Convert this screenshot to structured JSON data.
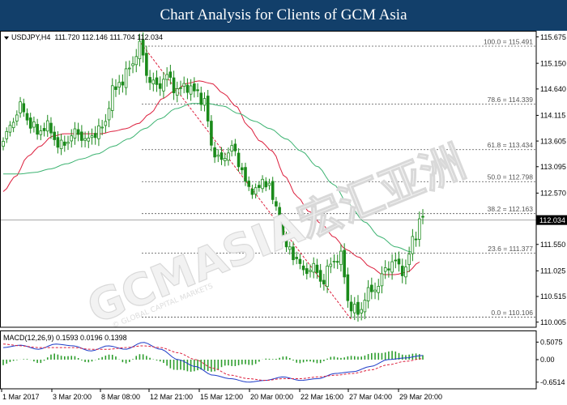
{
  "banner": {
    "title": "Chart Analysis for Clients of GCM Asia"
  },
  "watermark": {
    "main": "GCMASIA宏汇亚洲",
    "sub": "© GLOBAL CAPITAL MARKETS"
  },
  "colors": {
    "banner_bg": "#123f6a",
    "candle": "#1a8a1a",
    "ma_fast": "#dc1e3c",
    "ma_slow": "#3cb371",
    "fib_line": "#555555",
    "trend": "#dc1e3c",
    "macd_hist": "#2e9e2e",
    "macd_line": "#1e3cc8",
    "signal": "#dc1e3c"
  },
  "chart_data": [
    {
      "type": "candlestick",
      "header": {
        "symbol": "USDJPY,H4",
        "ohlc": "111.720 112.146 111.704 112.034"
      },
      "ylim": [
        110.0,
        115.7
      ],
      "y_ticks": [
        "115.675",
        "115.150",
        "114.640",
        "114.115",
        "113.605",
        "113.095",
        "112.570",
        "112.034",
        "111.550",
        "111.025",
        "110.515",
        "110.005"
      ],
      "last_price": "112.034",
      "x_ticks": [
        "1 Mar 2017",
        "3 Mar 20:00",
        "8 Mar 08:00",
        "12 Mar 21:00",
        "15 Mar 12:00",
        "20 Mar 00:00",
        "22 Mar 16:00",
        "27 Mar 04:00",
        "29 Mar 20:00"
      ],
      "fib_levels": [
        {
          "label": "100.0 = 115.491",
          "value": 115.491
        },
        {
          "label": "78.6 = 114.339",
          "value": 114.339
        },
        {
          "label": "61.8 = 113.434",
          "value": 113.434
        },
        {
          "label": "50.0 = 112.798",
          "value": 112.798
        },
        {
          "label": "38.2 = 112.163",
          "value": 112.163
        },
        {
          "label": "23.6 = 111.377",
          "value": 111.377
        },
        {
          "label": "0.0 = 110.106",
          "value": 110.106
        }
      ],
      "trend_line": {
        "from": 115.55,
        "to": 110.05
      },
      "close_path": [
        113.6,
        114.0,
        114.3,
        113.9,
        113.8,
        113.9,
        113.5,
        113.6,
        113.8,
        113.6,
        113.75,
        113.9,
        114.6,
        114.8,
        115.1,
        115.5,
        114.8,
        114.7,
        114.9,
        114.6,
        114.7,
        114.6,
        114.4,
        113.4,
        113.2,
        113.5,
        113.1,
        112.6,
        112.7,
        112.8,
        112.2,
        111.5,
        111.3,
        111.0,
        111.1,
        110.8,
        111.2,
        111.3,
        110.3,
        110.2,
        110.6,
        110.7,
        111.1,
        111.2,
        111.0,
        111.7,
        112.1
      ],
      "ma_fast_path": [
        112.6,
        112.9,
        113.3,
        113.5,
        113.7,
        113.75,
        113.75,
        113.75,
        113.75,
        113.8,
        113.85,
        113.95,
        114.15,
        114.45,
        114.6,
        114.75,
        114.8,
        114.75,
        114.55,
        114.3,
        113.9,
        113.6,
        113.4,
        112.9,
        112.5,
        112.2,
        111.95,
        111.7,
        111.45,
        111.3,
        111.1,
        110.95,
        110.95,
        111.0,
        111.2
      ],
      "ma_slow_path": [
        112.95,
        112.95,
        112.98,
        113.05,
        113.15,
        113.25,
        113.35,
        113.5,
        113.65,
        113.85,
        114.05,
        114.25,
        114.35,
        114.35,
        114.3,
        114.15,
        114.0,
        113.85,
        113.65,
        113.4,
        113.1,
        112.75,
        112.35,
        112.0,
        111.7,
        111.5,
        111.4
      ]
    },
    {
      "type": "macd",
      "label": "MACD(12,26,9) 0.1593 0.0196 0.1398",
      "ylim": [
        -0.75,
        0.75
      ],
      "y_ticks": [
        "0.5075",
        "0.00",
        "-0.6514"
      ],
      "macd_path": [
        0.35,
        0.42,
        0.3,
        0.45,
        0.4,
        0.25,
        0.4,
        0.3,
        0.5,
        0.3,
        0.0,
        -0.2,
        -0.45,
        -0.55,
        -0.65,
        -0.6,
        -0.5,
        -0.6,
        -0.55,
        -0.4,
        -0.35,
        -0.2,
        0.0,
        0.05,
        0.12
      ],
      "signal_path": [
        0.45,
        0.4,
        0.35,
        0.35,
        0.35,
        0.3,
        0.3,
        0.35,
        0.4,
        0.35,
        0.2,
        0.0,
        -0.25,
        -0.45,
        -0.55,
        -0.6,
        -0.55,
        -0.55,
        -0.5,
        -0.45,
        -0.4,
        -0.3,
        -0.15,
        -0.05,
        0.03
      ]
    }
  ]
}
